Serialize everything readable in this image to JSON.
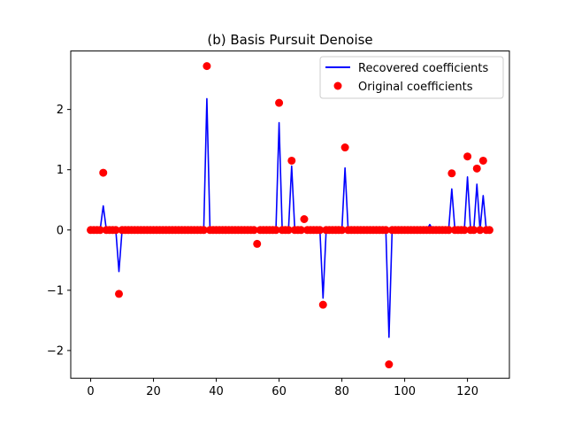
{
  "chart_data": {
    "type": "line",
    "title": "(b) Basis Pursuit Denoise",
    "xlabel": "",
    "ylabel": "",
    "xlim": [
      -6.35,
      133.35
    ],
    "ylim": [
      -2.46,
      2.97
    ],
    "xticks": [
      0,
      20,
      40,
      60,
      80,
      100,
      120
    ],
    "xtick_labels": [
      "0",
      "20",
      "40",
      "60",
      "80",
      "100",
      "120"
    ],
    "yticks": [
      -2,
      -1,
      0,
      1,
      2
    ],
    "ytick_labels": [
      "−2",
      "−1",
      "0",
      "1",
      "2"
    ],
    "grid": false,
    "legend_position": "top-right",
    "n": 128,
    "series": [
      {
        "name": "Recovered coefficients",
        "kind": "line",
        "color": "#0000ff",
        "nonzero": {
          "4": 0.4,
          "9": -0.69,
          "37": 2.18,
          "60": 1.78,
          "64": 1.06,
          "74": -1.13,
          "81": 1.03,
          "95": -1.78,
          "108": 0.09,
          "115": 0.68,
          "120": 0.88,
          "123": 0.76,
          "125": 0.57
        }
      },
      {
        "name": "Original coefficients",
        "kind": "scatter",
        "color": "#ff0000",
        "nonzero": {
          "4": 0.95,
          "9": -1.06,
          "37": 2.72,
          "53": -0.23,
          "60": 2.11,
          "64": 1.15,
          "68": 0.18,
          "74": -1.24,
          "81": 1.37,
          "95": -2.23,
          "115": 0.94,
          "120": 1.22,
          "123": 1.02,
          "125": 1.15
        }
      }
    ]
  }
}
